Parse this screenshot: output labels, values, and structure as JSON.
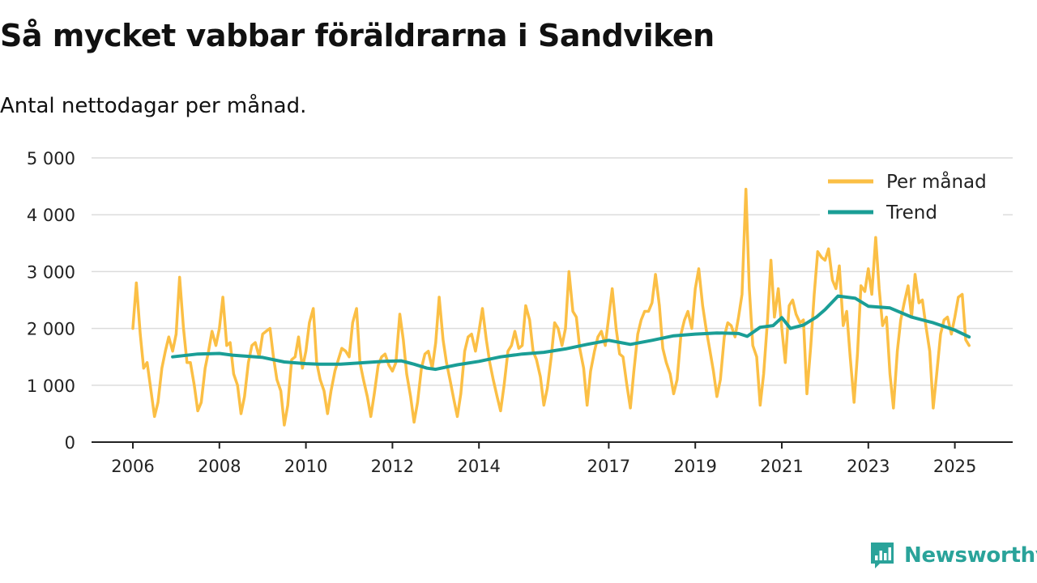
{
  "header": {
    "title": "Så mycket vabbar föräldrarna i Sandviken",
    "subtitle": "Antal nettodagar per månad."
  },
  "brand": {
    "name": "Newsworthy",
    "logo_icon": "bar-chart-logo-icon"
  },
  "colors": {
    "monthly": "#fbbf45",
    "trend": "#1a9e96",
    "grid": "#dcdcdc",
    "axis": "#222222",
    "brand": "#2aa39a"
  },
  "chart_data": {
    "type": "line",
    "title": "Så mycket vabbar föräldrarna i Sandviken",
    "subtitle": "Antal nettodagar per månad.",
    "xlabel": "",
    "ylabel": "",
    "xlim": [
      2006.0,
      2026.3
    ],
    "ylim": [
      0,
      5000
    ],
    "yticks": [
      0,
      1000,
      2000,
      3000,
      4000,
      5000
    ],
    "ytick_labels": [
      "0",
      "1 000",
      "2 000",
      "3 000",
      "4 000",
      "5 000"
    ],
    "xticks": [
      2006,
      2008,
      2010,
      2012,
      2014,
      2017,
      2019,
      2021,
      2023,
      2025
    ],
    "xtick_labels": [
      "2006",
      "2008",
      "2010",
      "2012",
      "2014",
      "2017",
      "2019",
      "2021",
      "2023",
      "2025"
    ],
    "grid": true,
    "legend_position": "top-right",
    "series": [
      {
        "name": "Per månad",
        "color": "#fbbf45",
        "x": [
          2006.0,
          2006.08,
          2006.17,
          2006.25,
          2006.33,
          2006.42,
          2006.5,
          2006.58,
          2006.67,
          2006.75,
          2006.83,
          2006.92,
          2007.0,
          2007.08,
          2007.17,
          2007.25,
          2007.33,
          2007.42,
          2007.5,
          2007.58,
          2007.67,
          2007.75,
          2007.83,
          2007.92,
          2008.0,
          2008.08,
          2008.17,
          2008.25,
          2008.33,
          2008.42,
          2008.5,
          2008.58,
          2008.67,
          2008.75,
          2008.83,
          2008.92,
          2009.0,
          2009.08,
          2009.17,
          2009.25,
          2009.33,
          2009.42,
          2009.5,
          2009.58,
          2009.67,
          2009.75,
          2009.83,
          2009.92,
          2010.0,
          2010.08,
          2010.17,
          2010.25,
          2010.33,
          2010.42,
          2010.5,
          2010.58,
          2010.67,
          2010.75,
          2010.83,
          2010.92,
          2011.0,
          2011.08,
          2011.17,
          2011.25,
          2011.33,
          2011.42,
          2011.5,
          2011.58,
          2011.67,
          2011.75,
          2011.83,
          2011.92,
          2012.0,
          2012.08,
          2012.17,
          2012.25,
          2012.33,
          2012.42,
          2012.5,
          2012.58,
          2012.67,
          2012.75,
          2012.83,
          2012.92,
          2013.0,
          2013.08,
          2013.17,
          2013.25,
          2013.33,
          2013.42,
          2013.5,
          2013.58,
          2013.67,
          2013.75,
          2013.83,
          2013.92,
          2014.0,
          2014.08,
          2014.17,
          2014.25,
          2014.33,
          2014.42,
          2014.5,
          2014.58,
          2014.67,
          2014.75,
          2014.83,
          2014.92,
          2015.0,
          2015.08,
          2015.17,
          2015.25,
          2015.33,
          2015.42,
          2015.5,
          2015.58,
          2015.67,
          2015.75,
          2015.83,
          2015.92,
          2016.0,
          2016.08,
          2016.17,
          2016.25,
          2016.33,
          2016.42,
          2016.5,
          2016.58,
          2016.67,
          2016.75,
          2016.83,
          2016.92,
          2017.0,
          2017.08,
          2017.17,
          2017.25,
          2017.33,
          2017.42,
          2017.5,
          2017.58,
          2017.67,
          2017.75,
          2017.83,
          2017.92,
          2018.0,
          2018.08,
          2018.17,
          2018.25,
          2018.33,
          2018.42,
          2018.5,
          2018.58,
          2018.67,
          2018.75,
          2018.83,
          2018.92,
          2019.0,
          2019.08,
          2019.17,
          2019.25,
          2019.33,
          2019.42,
          2019.5,
          2019.58,
          2019.67,
          2019.75,
          2019.83,
          2019.92,
          2020.0,
          2020.08,
          2020.17,
          2020.25,
          2020.33,
          2020.42,
          2020.5,
          2020.58,
          2020.67,
          2020.75,
          2020.83,
          2020.92,
          2021.0,
          2021.08,
          2021.17,
          2021.25,
          2021.33,
          2021.42,
          2021.5,
          2021.58,
          2021.67,
          2021.75,
          2021.83,
          2021.92,
          2022.0,
          2022.08,
          2022.17,
          2022.25,
          2022.33,
          2022.42,
          2022.5,
          2022.58,
          2022.67,
          2022.75,
          2022.83,
          2022.92,
          2023.0,
          2023.08,
          2023.17,
          2023.25,
          2023.33,
          2023.42,
          2023.5,
          2023.58,
          2023.67,
          2023.75,
          2023.83,
          2023.92,
          2024.0,
          2024.08,
          2024.17,
          2024.25,
          2024.33,
          2024.42,
          2024.5,
          2024.58,
          2024.67,
          2024.75,
          2024.83,
          2024.92,
          2025.0,
          2025.08,
          2025.17,
          2025.25,
          2025.33
        ],
        "values": [
          2000,
          2800,
          1900,
          1300,
          1400,
          900,
          450,
          700,
          1300,
          1600,
          1850,
          1600,
          1900,
          2900,
          2000,
          1400,
          1400,
          1000,
          550,
          700,
          1300,
          1600,
          1950,
          1700,
          2000,
          2550,
          1700,
          1750,
          1200,
          1000,
          500,
          800,
          1400,
          1700,
          1750,
          1500,
          1900,
          1950,
          2000,
          1500,
          1100,
          900,
          300,
          650,
          1450,
          1500,
          1850,
          1300,
          1600,
          2100,
          2350,
          1400,
          1100,
          900,
          500,
          900,
          1250,
          1450,
          1650,
          1600,
          1500,
          2100,
          2350,
          1400,
          1100,
          800,
          450,
          850,
          1350,
          1500,
          1550,
          1350,
          1250,
          1400,
          2250,
          1800,
          1200,
          800,
          350,
          700,
          1300,
          1550,
          1600,
          1300,
          1750,
          2550,
          1800,
          1400,
          1100,
          750,
          450,
          850,
          1600,
          1850,
          1900,
          1600,
          1950,
          2350,
          1800,
          1400,
          1100,
          800,
          550,
          1000,
          1600,
          1700,
          1950,
          1650,
          1700,
          2400,
          2150,
          1600,
          1450,
          1150,
          650,
          950,
          1500,
          2100,
          2000,
          1700,
          2000,
          3000,
          2300,
          2200,
          1650,
          1300,
          650,
          1250,
          1600,
          1850,
          1950,
          1700,
          2200,
          2700,
          2000,
          1550,
          1500,
          1000,
          600,
          1250,
          1900,
          2150,
          2300,
          2300,
          2450,
          2950,
          2400,
          1650,
          1400,
          1200,
          850,
          1100,
          1900,
          2150,
          2300,
          2000,
          2700,
          3050,
          2400,
          2000,
          1650,
          1250,
          800,
          1100,
          1850,
          2100,
          2050,
          1850,
          2200,
          2600,
          4450,
          2700,
          1700,
          1500,
          650,
          1200,
          2150,
          3200,
          2200,
          2700,
          2000,
          1400,
          2400,
          2500,
          2250,
          2100,
          2150,
          850,
          1700,
          2600,
          3350,
          3250,
          3200,
          3400,
          2850,
          2700,
          3100,
          2050,
          2300,
          1500,
          700,
          1550,
          2750,
          2650,
          3050,
          2600,
          3600,
          2700,
          2050,
          2200,
          1200,
          600,
          1600,
          2150,
          2450,
          2750,
          2200,
          2950,
          2450,
          2500,
          2050,
          1600,
          600,
          1200,
          1900,
          2150,
          2200,
          1900,
          2200,
          2550,
          2600,
          1800,
          1700
        ]
      },
      {
        "name": "Trend",
        "color": "#1a9e96",
        "x": [
          2006.92,
          2007.5,
          2008.0,
          2008.3,
          2009.0,
          2009.5,
          2010.0,
          2010.3,
          2010.8,
          2011.2,
          2011.8,
          2012.2,
          2012.5,
          2012.8,
          2013.0,
          2013.5,
          2014.0,
          2014.5,
          2015.0,
          2015.5,
          2016.0,
          2016.5,
          2017.0,
          2017.5,
          2018.0,
          2018.5,
          2019.0,
          2019.5,
          2020.0,
          2020.2,
          2020.5,
          2020.8,
          2021.0,
          2021.2,
          2021.5,
          2021.8,
          2022.0,
          2022.3,
          2022.7,
          2023.0,
          2023.5,
          2024.0,
          2024.5,
          2025.0,
          2025.33
        ],
        "values": [
          1500,
          1550,
          1560,
          1530,
          1490,
          1410,
          1380,
          1370,
          1370,
          1390,
          1420,
          1430,
          1370,
          1300,
          1280,
          1360,
          1420,
          1500,
          1550,
          1580,
          1640,
          1720,
          1790,
          1720,
          1790,
          1870,
          1900,
          1920,
          1910,
          1860,
          2020,
          2050,
          2190,
          2000,
          2060,
          2200,
          2330,
          2570,
          2530,
          2390,
          2360,
          2200,
          2100,
          1970,
          1850
        ]
      }
    ]
  }
}
